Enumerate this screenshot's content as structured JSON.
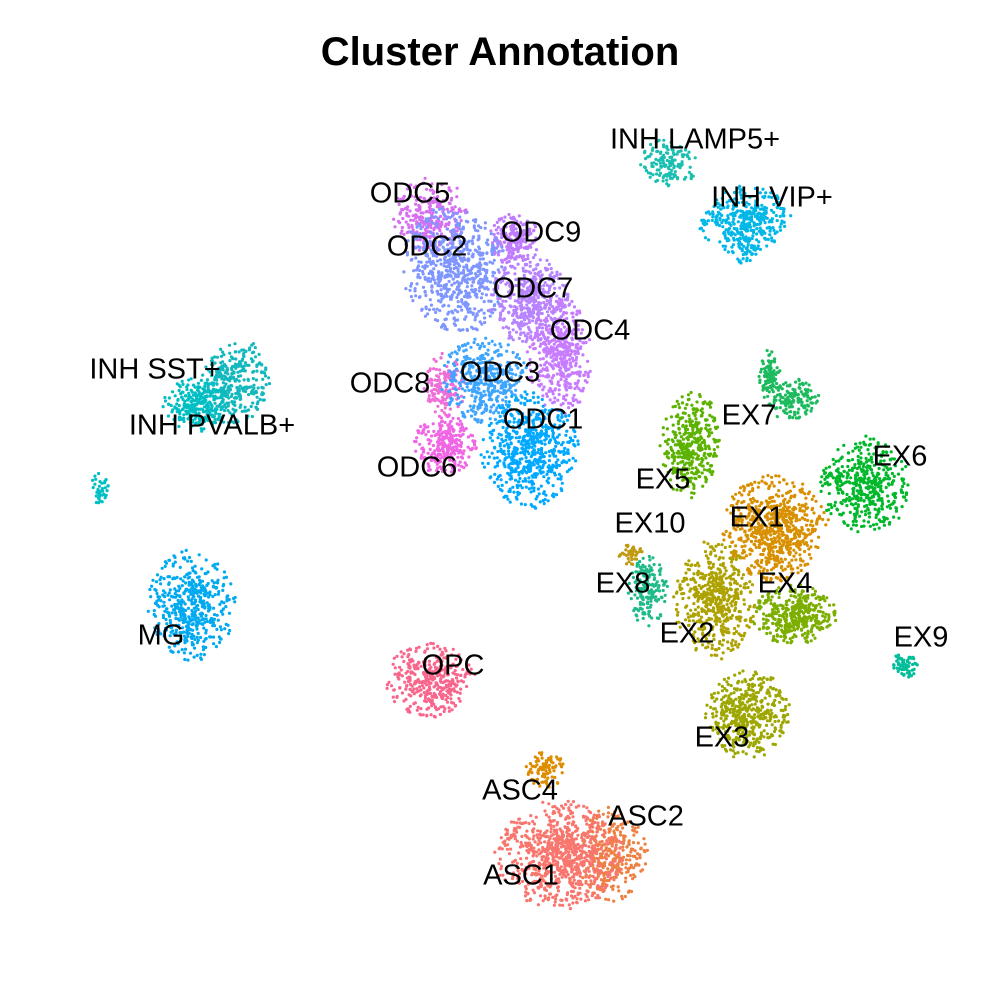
{
  "chart_data": {
    "type": "scatter",
    "title": "Cluster Annotation",
    "xlabel": "",
    "ylabel": "",
    "grid": false,
    "legend": "none",
    "axes_visible": false,
    "clusters": [
      {
        "label": "INH LAMP5+",
        "color": "#1ABFB0"
      },
      {
        "label": "INH VIP+",
        "color": "#00B7E8"
      },
      {
        "label": "ODC5",
        "color": "#D670F0"
      },
      {
        "label": "ODC9",
        "color": "#C07CFF"
      },
      {
        "label": "ODC2",
        "color": "#7F96FF"
      },
      {
        "label": "ODC7",
        "color": "#B883FF"
      },
      {
        "label": "ODC4",
        "color": "#C77CFF"
      },
      {
        "label": "INH SST+",
        "color": "#12B8BE"
      },
      {
        "label": "INH PVALB+",
        "color": "#00BFC4"
      },
      {
        "label": "ODC8",
        "color": "#EE6FD8"
      },
      {
        "label": "ODC3",
        "color": "#3EA5FF"
      },
      {
        "label": "ODC1",
        "color": "#00A9FF"
      },
      {
        "label": "ODC6",
        "color": "#F066E4"
      },
      {
        "label": "EX7",
        "color": "#1DBA5E"
      },
      {
        "label": "EX6",
        "color": "#00B82A"
      },
      {
        "label": "EX5",
        "color": "#5BB300"
      },
      {
        "label": "EX1",
        "color": "#D89000"
      },
      {
        "label": "EX10",
        "color": "#C09A10"
      },
      {
        "label": "EX8",
        "color": "#1EBA8A"
      },
      {
        "label": "EX4",
        "color": "#7CAE00"
      },
      {
        "label": "EX2",
        "color": "#ADA200"
      },
      {
        "label": "EX9",
        "color": "#00BE9A"
      },
      {
        "label": "EX3",
        "color": "#9DA700"
      },
      {
        "label": "MG",
        "color": "#00A9F0"
      },
      {
        "label": "OPC",
        "color": "#F8668C"
      },
      {
        "label": "ASC4",
        "color": "#DE8C00"
      },
      {
        "label": "ASC2",
        "color": "#EE8044"
      },
      {
        "label": "ASC1",
        "color": "#F8766D"
      }
    ]
  }
}
